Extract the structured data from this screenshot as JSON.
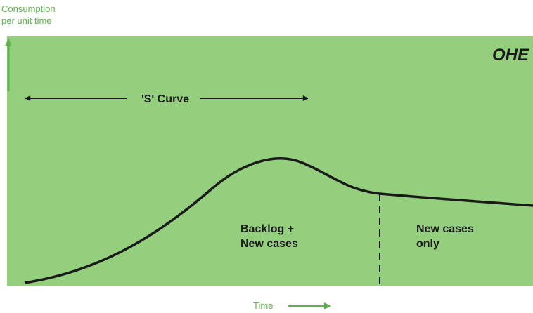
{
  "y_axis_label": [
    "Consumption",
    "per unit time"
  ],
  "x_axis_label": "Time",
  "logo": "OHE",
  "curve_label": "'S' Curve",
  "regions": [
    {
      "lines": [
        "Backlog +",
        "New cases"
      ]
    },
    {
      "lines": [
        "New cases",
        "only"
      ]
    }
  ]
}
